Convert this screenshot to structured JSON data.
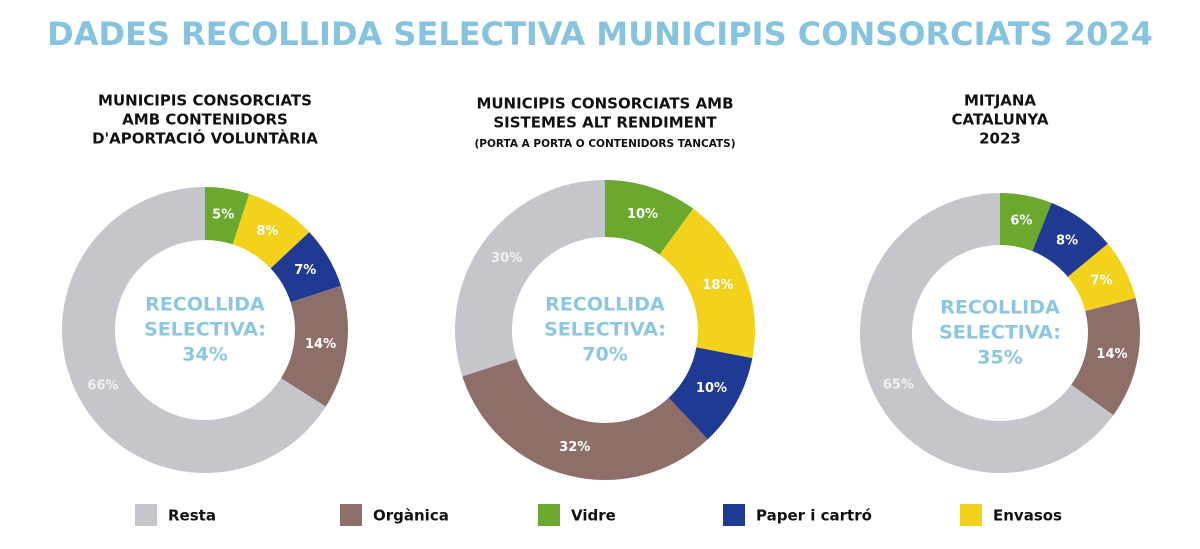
{
  "title": "DADES RECOLLIDA SELECTIVA MUNICIPIS CONSORCIATS 2024",
  "legend": [
    {
      "name": "Resta",
      "color": "#c4c6cc"
    },
    {
      "name": "Orgànica",
      "color": "#8e6e68"
    },
    {
      "name": "Vidre",
      "color": "#6aa82e"
    },
    {
      "name": "Paper i cartró",
      "color": "#1f3a93"
    },
    {
      "name": "Envasos",
      "color": "#f2d21a"
    }
  ],
  "chart_data": [
    {
      "type": "pie",
      "title": [
        "MUNICIPIS CONSORCIATS",
        "AMB CONTENIDORS",
        "D'APORTACIÓ VOLUNTÀRIA"
      ],
      "center_label": [
        "RECOLLIDA",
        "SELECTIVA:",
        "34%"
      ],
      "categories": [
        "Vidre",
        "Envasos",
        "Paper i cartró",
        "Orgànica",
        "Resta"
      ],
      "values": [
        5,
        8,
        7,
        14,
        66
      ],
      "value_labels": [
        "5%",
        "8%",
        "7%",
        "14%",
        "66%"
      ],
      "colors": [
        "#6aa82e",
        "#f2d21a",
        "#1f3a93",
        "#8e6e68",
        "#c4c6cc"
      ]
    },
    {
      "type": "pie",
      "title": [
        "MUNICIPIS CONSORCIATS AMB",
        "SISTEMES ALT RENDIMENT"
      ],
      "subtitle": "(PORTA A PORTA O CONTENIDORS TANCATS)",
      "center_label": [
        "RECOLLIDA",
        "SELECTIVA:",
        "70%"
      ],
      "categories": [
        "Vidre",
        "Envasos",
        "Paper i cartró",
        "Orgànica",
        "Resta"
      ],
      "values": [
        10,
        18,
        10,
        32,
        30
      ],
      "value_labels": [
        "10%",
        "18%",
        "10%",
        "32%",
        "30%"
      ],
      "colors": [
        "#6aa82e",
        "#f2d21a",
        "#1f3a93",
        "#8e6e68",
        "#c4c6cc"
      ]
    },
    {
      "type": "pie",
      "title": [
        "MITJANA",
        "CATALUNYA",
        "2023"
      ],
      "center_label": [
        "RECOLLIDA",
        "SELECTIVA:",
        "35%"
      ],
      "categories": [
        "Vidre",
        "Paper i cartró",
        "Envasos",
        "Orgànica",
        "Resta"
      ],
      "values": [
        6,
        8,
        7,
        14,
        65
      ],
      "value_labels": [
        "6%",
        "8%",
        "7%",
        "14%",
        "65%"
      ],
      "colors": [
        "#6aa82e",
        "#1f3a93",
        "#f2d21a",
        "#8e6e68",
        "#c4c6cc"
      ]
    }
  ]
}
